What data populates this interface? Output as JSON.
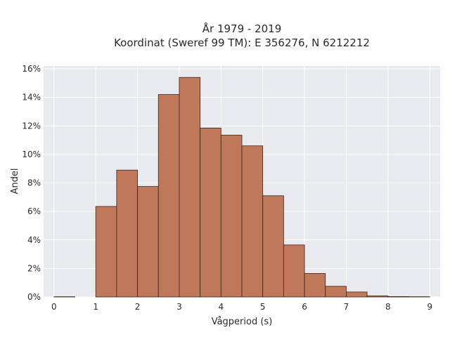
{
  "chart_data": {
    "type": "bar",
    "title": [
      "År 1979 - 2019",
      "Koordinat (Sweref 99 TM): E 356276, N 6212212"
    ],
    "xlabel": "Vågperiod (s)",
    "ylabel": "Andel",
    "bin_width": 0.5,
    "bin_starts": [
      0,
      0.5,
      1,
      1.5,
      2,
      2.5,
      3,
      3.5,
      4,
      4.5,
      5,
      5.5,
      6,
      6.5,
      7,
      7.5,
      8,
      8.5
    ],
    "values": [
      0.02,
      0,
      6.35,
      8.9,
      7.75,
      14.2,
      15.4,
      11.85,
      11.35,
      10.6,
      7.1,
      3.65,
      1.65,
      0.75,
      0.35,
      0.08,
      0.03,
      0.02
    ],
    "xlim": [
      -0.25,
      9.25
    ],
    "ylim": [
      0,
      16.2
    ],
    "xticks": [
      "0",
      "1",
      "2",
      "3",
      "4",
      "5",
      "6",
      "7",
      "8",
      "9"
    ],
    "yticks": [
      "0%",
      "2%",
      "4%",
      "6%",
      "8%",
      "10%",
      "12%",
      "14%",
      "16%"
    ],
    "bar_color": "#c0785a",
    "bar_edge_color": "#3d2418",
    "plot_bg": "#e9e9f0",
    "grid": true
  }
}
